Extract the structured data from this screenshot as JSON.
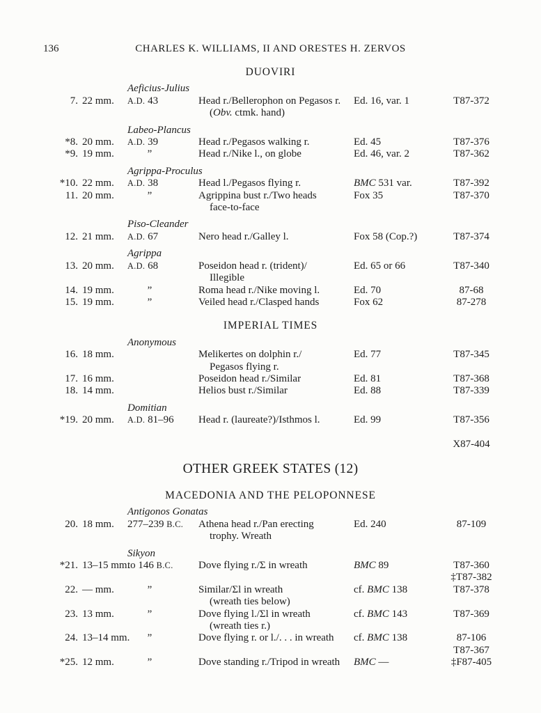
{
  "colors": {
    "paper": "#fcfcfa",
    "ink": "#1c1c1c"
  },
  "page": {
    "number": "136",
    "running_head": "CHARLES K. WILLIAMS, II AND ORESTES H. ZERVOS"
  },
  "content": [
    {
      "t": "h2",
      "text": "DUOVIRI"
    },
    {
      "t": "group",
      "text": "Aeficius-Julius"
    },
    {
      "t": "row",
      "num": "7.",
      "size": "22 mm.",
      "date": [
        [
          "sc",
          "A.D."
        ],
        [
          "n",
          " 43"
        ]
      ],
      "desc": [
        [
          [
            "n",
            "Head r./Bellerophon on Pegasos r."
          ]
        ],
        [
          [
            "n",
            "("
          ],
          [
            "i",
            "Obv."
          ],
          [
            "n",
            " ctmk. hand)"
          ]
        ]
      ],
      "ref": [
        [
          "n",
          "Ed. 16, var. 1"
        ]
      ],
      "cat": [
        "T87-372"
      ]
    },
    {
      "t": "group",
      "text": "Labeo-Plancus"
    },
    {
      "t": "row",
      "num": "*8.",
      "size": "20 mm.",
      "date": [
        [
          "sc",
          "A.D."
        ],
        [
          "n",
          " 39"
        ]
      ],
      "desc": [
        [
          [
            "n",
            "Head r./Pegasos walking r."
          ]
        ]
      ],
      "ref": [
        [
          "n",
          "Ed. 45"
        ]
      ],
      "cat": [
        "T87-376"
      ]
    },
    {
      "t": "row",
      "num": "*9.",
      "size": "19 mm.",
      "date": [
        [
          "d",
          "”"
        ]
      ],
      "desc": [
        [
          [
            "n",
            "Head r./Nike l., on globe"
          ]
        ]
      ],
      "ref": [
        [
          "n",
          "Ed. 46, var. 2"
        ]
      ],
      "cat": [
        "T87-362"
      ]
    },
    {
      "t": "group",
      "text": "Agrippa-Proculus"
    },
    {
      "t": "row",
      "num": "*10.",
      "size": "22 mm.",
      "date": [
        [
          "sc",
          "A.D."
        ],
        [
          "n",
          " 38"
        ]
      ],
      "desc": [
        [
          [
            "n",
            "Head l./Pegasos flying r."
          ]
        ]
      ],
      "ref": [
        [
          "i",
          "BMC"
        ],
        [
          "n",
          " 531 var."
        ]
      ],
      "cat": [
        "T87-392"
      ]
    },
    {
      "t": "row",
      "num": "11.",
      "size": "20 mm.",
      "date": [
        [
          "d",
          "”"
        ]
      ],
      "desc": [
        [
          [
            "n",
            "Agrippina bust r./Two heads"
          ]
        ],
        [
          [
            "n",
            "face-to-face"
          ]
        ]
      ],
      "ref": [
        [
          "n",
          "Fox 35"
        ]
      ],
      "cat": [
        "T87-370"
      ]
    },
    {
      "t": "group",
      "text": "Piso-Cleander"
    },
    {
      "t": "row",
      "num": "12.",
      "size": "21 mm.",
      "date": [
        [
          "sc",
          "A.D."
        ],
        [
          "n",
          " 67"
        ]
      ],
      "desc": [
        [
          [
            "n",
            "Nero head r./Galley l."
          ]
        ]
      ],
      "ref": [
        [
          "n",
          "Fox 58 (Cop.?)"
        ]
      ],
      "cat": [
        "T87-374"
      ]
    },
    {
      "t": "group",
      "text": "Agrippa"
    },
    {
      "t": "row",
      "num": "13.",
      "size": "20 mm.",
      "date": [
        [
          "sc",
          "A.D."
        ],
        [
          "n",
          " 68"
        ]
      ],
      "desc": [
        [
          [
            "n",
            "Poseidon head r. (trident)/"
          ]
        ],
        [
          [
            "n",
            "Illegible"
          ]
        ]
      ],
      "ref": [
        [
          "n",
          "Ed. 65 or 66"
        ]
      ],
      "cat": [
        "T87-340"
      ]
    },
    {
      "t": "row",
      "num": "14.",
      "size": "19 mm.",
      "date": [
        [
          "d",
          "”"
        ]
      ],
      "desc": [
        [
          [
            "n",
            "Roma head r./Nike moving l."
          ]
        ]
      ],
      "ref": [
        [
          "n",
          "Ed. 70"
        ]
      ],
      "cat": [
        "87-68"
      ]
    },
    {
      "t": "row",
      "num": "15.",
      "size": "19 mm.",
      "date": [
        [
          "d",
          "”"
        ]
      ],
      "desc": [
        [
          [
            "n",
            "Veiled head r./Clasped hands"
          ]
        ]
      ],
      "ref": [
        [
          "n",
          "Fox 62"
        ]
      ],
      "cat": [
        "87-278"
      ]
    },
    {
      "t": "h2",
      "text": "IMPERIAL TIMES"
    },
    {
      "t": "group",
      "text": "Anonymous"
    },
    {
      "t": "row",
      "num": "16.",
      "size": "18 mm.",
      "date": [],
      "desc": [
        [
          [
            "n",
            "Melikertes on dolphin r./"
          ]
        ],
        [
          [
            "n",
            "Pegasos flying r."
          ]
        ]
      ],
      "ref": [
        [
          "n",
          "Ed. 77"
        ]
      ],
      "cat": [
        "T87-345"
      ]
    },
    {
      "t": "row",
      "num": "17.",
      "size": "16 mm.",
      "date": [],
      "desc": [
        [
          [
            "n",
            "Poseidon head r./Similar"
          ]
        ]
      ],
      "ref": [
        [
          "n",
          "Ed. 81"
        ]
      ],
      "cat": [
        "T87-368"
      ]
    },
    {
      "t": "row",
      "num": "18.",
      "size": "14 mm.",
      "date": [],
      "desc": [
        [
          [
            "n",
            "Helios bust r./Similar"
          ]
        ]
      ],
      "ref": [
        [
          "n",
          "Ed. 88"
        ]
      ],
      "cat": [
        "T87-339"
      ]
    },
    {
      "t": "group",
      "text": "Domitian"
    },
    {
      "t": "row",
      "num": "*19.",
      "size": "20 mm.",
      "date": [
        [
          "sc",
          "A.D."
        ],
        [
          "n",
          " 81–96"
        ]
      ],
      "desc": [
        [
          [
            "n",
            "Head r. (laureate?)/Isthmos l."
          ]
        ]
      ],
      "ref": [
        [
          "n",
          "Ed. 99"
        ]
      ],
      "cat": [
        "T87-356"
      ]
    },
    {
      "t": "row",
      "num": "",
      "size": "",
      "date": [],
      "desc": [],
      "ref": [],
      "cat": [
        "X87-404"
      ]
    },
    {
      "t": "h1",
      "text": "OTHER GREEK STATES (12)"
    },
    {
      "t": "h2",
      "text": "MACEDONIA AND THE PELOPONNESE"
    },
    {
      "t": "group",
      "text": "Antigonos Gonatas"
    },
    {
      "t": "row",
      "num": "20.",
      "size": "18 mm.",
      "date": [
        [
          "n",
          "277–239 "
        ],
        [
          "sc",
          "B.C."
        ]
      ],
      "desc": [
        [
          [
            "n",
            "Athena head r./Pan erecting"
          ]
        ],
        [
          [
            "n",
            "trophy. Wreath"
          ]
        ]
      ],
      "ref": [
        [
          "n",
          "Ed. 240"
        ]
      ],
      "cat": [
        "87-109"
      ]
    },
    {
      "t": "group",
      "text": "Sikyon"
    },
    {
      "t": "row",
      "num": "*21.",
      "size": "13–15 mm.",
      "date": [
        [
          "n",
          "to 146 "
        ],
        [
          "sc",
          "B.C."
        ]
      ],
      "desc": [
        [
          [
            "n",
            "Dove flying r./Σ in wreath"
          ]
        ]
      ],
      "ref": [
        [
          "i",
          "BMC"
        ],
        [
          "n",
          " 89"
        ]
      ],
      "cat": [
        "T87-360",
        "‡T87-382"
      ]
    },
    {
      "t": "row",
      "num": "22.",
      "size": "— mm.",
      "date": [
        [
          "d",
          "”"
        ]
      ],
      "desc": [
        [
          [
            "n",
            "Similar/Σl in wreath"
          ]
        ],
        [
          [
            "n",
            "(wreath ties below)"
          ]
        ]
      ],
      "ref": [
        [
          "n",
          "cf. "
        ],
        [
          "i",
          "BMC"
        ],
        [
          "n",
          " 138"
        ]
      ],
      "cat": [
        "T87-378"
      ]
    },
    {
      "t": "row",
      "num": "23.",
      "size": "13 mm.",
      "date": [
        [
          "d",
          "”"
        ]
      ],
      "desc": [
        [
          [
            "n",
            "Dove flying l./Σl in wreath"
          ]
        ],
        [
          [
            "n",
            "(wreath ties r.)"
          ]
        ]
      ],
      "ref": [
        [
          "n",
          "cf. "
        ],
        [
          "i",
          "BMC"
        ],
        [
          "n",
          " 143"
        ]
      ],
      "cat": [
        "T87-369"
      ]
    },
    {
      "t": "row",
      "num": "24.",
      "size": "13–14 mm.",
      "date": [
        [
          "d",
          "”"
        ]
      ],
      "desc": [
        [
          [
            "n",
            "Dove flying r. or l./. . . in wreath"
          ]
        ]
      ],
      "ref": [
        [
          "n",
          "cf. "
        ],
        [
          "i",
          "BMC"
        ],
        [
          "n",
          " 138"
        ]
      ],
      "cat": [
        "87-106",
        "T87-367"
      ]
    },
    {
      "t": "row",
      "num": "*25.",
      "size": "12 mm.",
      "date": [
        [
          "d",
          "”"
        ]
      ],
      "desc": [
        [
          [
            "n",
            "Dove standing r./Tripod in wreath"
          ]
        ]
      ],
      "ref": [
        [
          "i",
          "BMC"
        ],
        [
          "n",
          " —"
        ]
      ],
      "cat": [
        "‡F87-405"
      ]
    }
  ]
}
